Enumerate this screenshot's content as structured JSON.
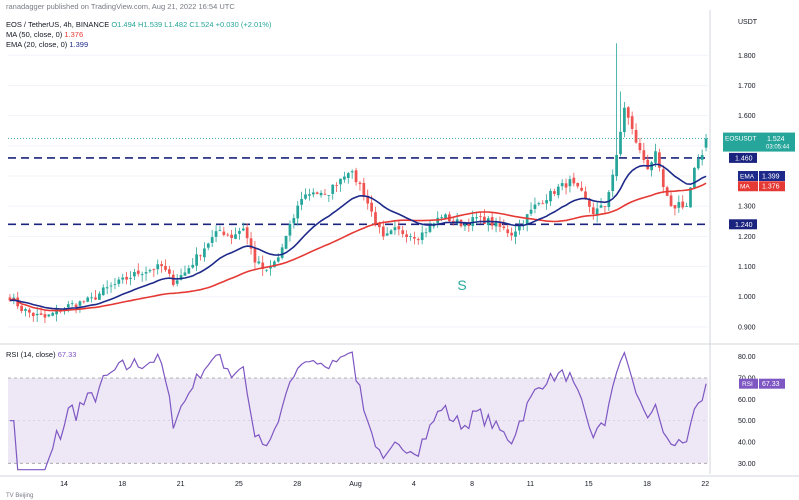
{
  "header": {
    "publisher": "ranadagger published on TradingView.com, Aug 21, 2022 16:54 UTC",
    "symbol_line": "EOS / TetherUS, 4h, BINANCE",
    "ohlc": "O1.494 H1.539 L1.482 C1.524 +0.030 (+2.01%)",
    "ma_label": "MA (50, close, 0)",
    "ma_value": "1.376",
    "ema_label": "EMA (20, close, 0)",
    "ema_value": "1.399",
    "rsi_label": "RSI (14, close)",
    "rsi_value": "67.33"
  },
  "watermark": "S",
  "colors": {
    "up": "#26a69a",
    "down": "#ef5350",
    "ema": "#1e2a8a",
    "ma": "#e53935",
    "level": "#1a237e",
    "rsi": "#7e57c2",
    "rsi_band": "#ede7f6",
    "price_tag": "#26a69a"
  },
  "chart_data": [
    {
      "type": "candlestick",
      "title": "EOS / TetherUS, 4h, BINANCE",
      "currency": "USDT",
      "ylim": [
        0.85,
        1.95
      ],
      "y_ticks": [
        "0.900",
        "1.000",
        "1.100",
        "1.200",
        "1.300",
        "1.400",
        "1.500",
        "1.600",
        "1.700",
        "1.800"
      ],
      "x_ticks": [
        "14",
        "18",
        "21",
        "25",
        "28",
        "Aug",
        "4",
        "8",
        "11",
        "15",
        "18",
        "22"
      ],
      "horizontal_levels": [
        {
          "value": 1.46,
          "label": "1.460"
        },
        {
          "value": 1.24,
          "label": "1.240"
        }
      ],
      "price_tag": {
        "symbol": "EOSUSDT",
        "value": "1.524",
        "countdown": "03:05:44"
      },
      "series_tags": [
        {
          "name": "EMA",
          "value": "1.399"
        },
        {
          "name": "MA",
          "value": "1.376"
        }
      ],
      "close_anchors": [
        [
          0,
          1.0
        ],
        [
          3,
          0.96
        ],
        [
          6,
          0.94
        ],
        [
          9,
          0.93
        ],
        [
          12,
          0.95
        ],
        [
          15,
          0.97
        ],
        [
          18,
          0.98
        ],
        [
          21,
          0.99
        ],
        [
          24,
          1.02
        ],
        [
          27,
          1.04
        ],
        [
          30,
          1.06
        ],
        [
          33,
          1.08
        ],
        [
          36,
          1.09
        ],
        [
          39,
          1.1
        ],
        [
          42,
          1.05
        ],
        [
          45,
          1.08
        ],
        [
          48,
          1.13
        ],
        [
          51,
          1.18
        ],
        [
          54,
          1.22
        ],
        [
          57,
          1.2
        ],
        [
          60,
          1.23
        ],
        [
          63,
          1.12
        ],
        [
          66,
          1.08
        ],
        [
          69,
          1.13
        ],
        [
          72,
          1.23
        ],
        [
          75,
          1.33
        ],
        [
          78,
          1.35
        ],
        [
          81,
          1.33
        ],
        [
          84,
          1.38
        ],
        [
          87,
          1.42
        ],
        [
          90,
          1.37
        ],
        [
          93,
          1.28
        ],
        [
          96,
          1.19
        ],
        [
          99,
          1.22
        ],
        [
          102,
          1.21
        ],
        [
          105,
          1.2
        ],
        [
          108,
          1.23
        ],
        [
          111,
          1.27
        ],
        [
          114,
          1.25
        ],
        [
          117,
          1.24
        ],
        [
          120,
          1.26
        ],
        [
          123,
          1.25
        ],
        [
          126,
          1.23
        ],
        [
          129,
          1.21
        ],
        [
          132,
          1.25
        ],
        [
          135,
          1.3
        ],
        [
          138,
          1.33
        ],
        [
          141,
          1.36
        ],
        [
          144,
          1.38
        ],
        [
          147,
          1.34
        ],
        [
          150,
          1.28
        ],
        [
          153,
          1.3
        ],
        [
          156,
          1.46
        ],
        [
          158,
          1.63
        ],
        [
          160,
          1.55
        ],
        [
          162,
          1.48
        ],
        [
          164,
          1.43
        ],
        [
          166,
          1.47
        ],
        [
          168,
          1.36
        ],
        [
          170,
          1.29
        ],
        [
          172,
          1.31
        ],
        [
          174,
          1.3
        ],
        [
          176,
          1.42
        ],
        [
          178,
          1.47
        ],
        [
          179,
          1.524
        ]
      ],
      "moving_averages": [
        {
          "name": "EMA (20, close, 0)",
          "last": 1.399
        },
        {
          "name": "MA (50, close, 0)",
          "last": 1.376
        }
      ]
    },
    {
      "type": "line",
      "title": "RSI (14, close)",
      "ylim": [
        25,
        85
      ],
      "y_ticks": [
        "30.00",
        "40.00",
        "50.00",
        "60.00",
        "70.00",
        "80.00"
      ],
      "bands": [
        30,
        70
      ],
      "last_value": "67.33",
      "tag": "RSI"
    }
  ],
  "footer": {
    "bottom_text": "TV Beijing"
  }
}
